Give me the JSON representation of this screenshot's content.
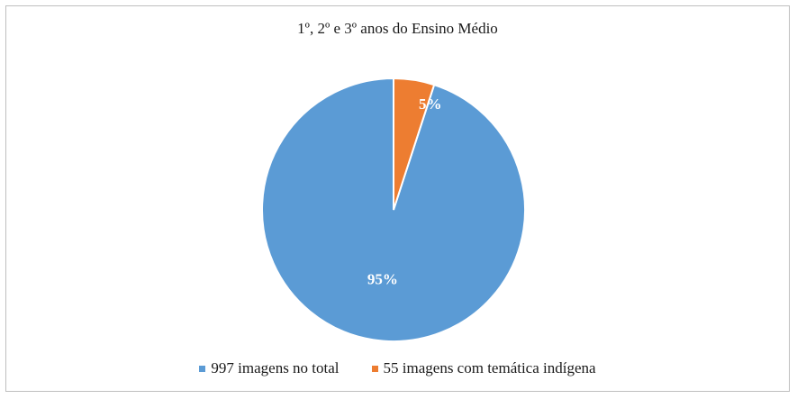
{
  "chart_data": {
    "type": "pie",
    "title": "1º, 2º e 3º anos do Ensino Médio",
    "categories": [
      "997 imagens no total",
      "55 imagens com temática indígena"
    ],
    "values": [
      95,
      5
    ],
    "data_labels": [
      "95%",
      "5%"
    ],
    "colors": [
      "#5b9bd5",
      "#ed7d31"
    ],
    "legend_position": "bottom"
  }
}
